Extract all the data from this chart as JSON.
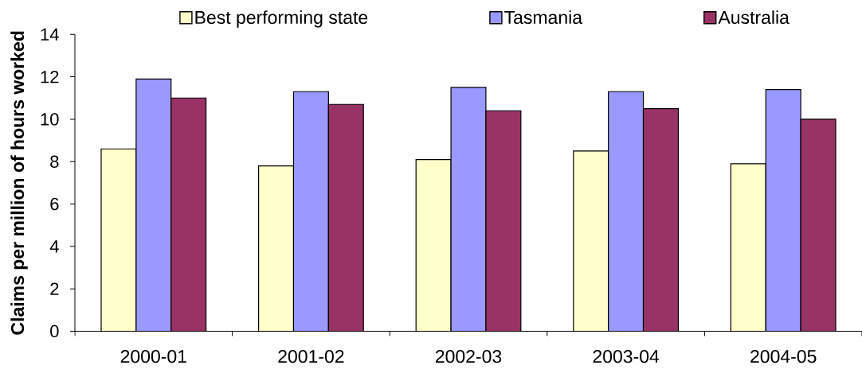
{
  "chart_data": {
    "type": "bar",
    "ylabel": "Claims per million of hours worked",
    "categories": [
      "2000-01",
      "2001-02",
      "2002-03",
      "2003-04",
      "2004-05"
    ],
    "series": [
      {
        "name": "Best performing state",
        "color": "#ffffcc",
        "values": [
          8.6,
          7.8,
          8.1,
          8.5,
          7.9
        ]
      },
      {
        "name": "Tasmania",
        "color": "#9999ff",
        "values": [
          11.9,
          11.3,
          11.5,
          11.3,
          11.4
        ]
      },
      {
        "name": "Australia",
        "color": "#993366",
        "values": [
          11.0,
          10.7,
          10.4,
          10.5,
          10.0
        ]
      }
    ],
    "ylim": [
      0,
      14
    ],
    "yticks": [
      0,
      2,
      4,
      6,
      8,
      10,
      12,
      14
    ],
    "legend": "top"
  }
}
